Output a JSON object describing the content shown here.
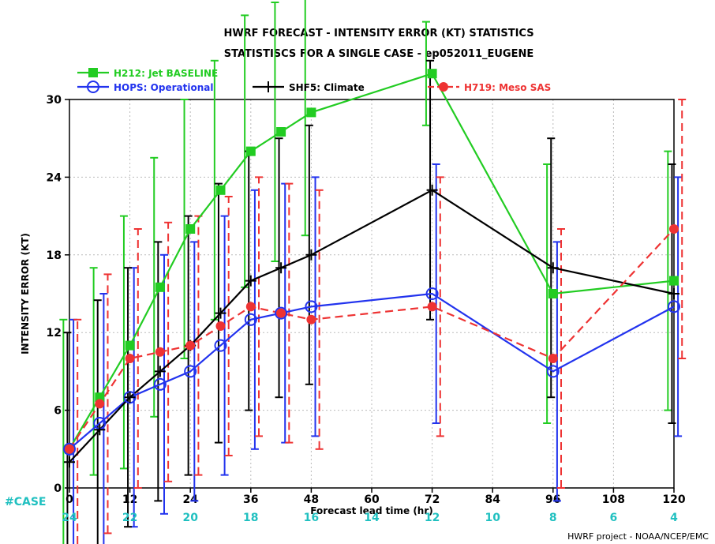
{
  "chart_data": {
    "type": "line",
    "title": "HWRF FORECAST - INTENSITY ERROR (KT) STATISTICS",
    "subtitle": "STATISTISCS FOR A SINGLE CASE - ep052011_EUGENE",
    "xlabel": "Forecast lead time (hr)",
    "ylabel": "INTENSITY ERROR (KT)",
    "xlim": [
      0,
      120
    ],
    "ylim": [
      0,
      30
    ],
    "x_ticks": [
      0,
      12,
      24,
      36,
      48,
      60,
      72,
      84,
      96,
      108,
      120
    ],
    "x_tick_labels": [
      "0",
      "12",
      "24",
      "36",
      "48",
      "60",
      "72",
      "84",
      "96",
      "108",
      "120"
    ],
    "y_ticks": [
      0,
      6,
      12,
      18,
      24,
      30
    ],
    "y_tick_labels": [
      "0",
      "6",
      "12",
      "18",
      "24",
      "30"
    ],
    "grid": true,
    "legend_position": "top",
    "case_label": "#CASE",
    "case_counts": {
      "x": [
        0,
        12,
        24,
        36,
        48,
        60,
        72,
        84,
        96,
        108,
        120
      ],
      "labels": [
        "24",
        "22",
        "20",
        "18",
        "16",
        "14",
        "12",
        "10",
        "8",
        "6",
        "4"
      ],
      "color": "#20c0c0"
    },
    "credit": "HWRF project - NOAA/NCEP/EMC",
    "series": [
      {
        "name": "H212: Jet BASELINE",
        "color": "#22cc22",
        "marker": "filled-square",
        "dash": "solid",
        "x": [
          0,
          6,
          12,
          18,
          24,
          30,
          36,
          42,
          48,
          72,
          96,
          120
        ],
        "y": [
          3,
          7,
          11,
          15.5,
          20,
          23,
          26,
          27.5,
          29,
          32,
          15,
          16
        ],
        "err_low": [
          -6,
          1,
          1.5,
          5.5,
          10,
          13,
          15.5,
          17.5,
          19.5,
          28,
          5,
          6
        ],
        "err_high": [
          13,
          17,
          21,
          25.5,
          30,
          33,
          36.5,
          37.5,
          38.5,
          36,
          25,
          26
        ]
      },
      {
        "name": "HOPS: Operational",
        "color": "#2233ee",
        "marker": "open-circle",
        "dash": "solid",
        "x": [
          0,
          6,
          12,
          18,
          24,
          30,
          36,
          42,
          48,
          72,
          96,
          120
        ],
        "y": [
          3,
          5,
          7,
          8,
          9,
          11,
          13,
          13.5,
          14,
          15,
          9,
          14
        ],
        "err_low": [
          -7,
          -5,
          -3,
          -2,
          -1,
          1,
          3,
          3.5,
          4,
          5,
          -1,
          4
        ],
        "err_high": [
          13,
          15,
          17,
          18,
          19,
          21,
          23,
          23.5,
          24,
          25,
          19,
          24
        ]
      },
      {
        "name": "SHF5: Climate",
        "color": "#000000",
        "marker": "plus",
        "dash": "solid",
        "x": [
          0,
          6,
          12,
          18,
          24,
          30,
          36,
          42,
          48,
          72,
          96,
          120
        ],
        "y": [
          2,
          4.5,
          7,
          9,
          11,
          13.5,
          16,
          17,
          18,
          23,
          17,
          15
        ],
        "err_low": [
          -8,
          -5.5,
          -3,
          -1,
          1,
          3.5,
          6,
          7,
          8,
          13,
          7,
          5
        ],
        "err_high": [
          12,
          14.5,
          17,
          19,
          21,
          23.5,
          26,
          27,
          28,
          33,
          27,
          25
        ]
      },
      {
        "name": "H719: Meso SAS",
        "color": "#ee3333",
        "marker": "filled-circle",
        "dash": "dashed",
        "x": [
          0,
          6,
          12,
          18,
          24,
          30,
          36,
          42,
          48,
          72,
          96,
          120
        ],
        "y": [
          3,
          6.5,
          10,
          10.5,
          11,
          12.5,
          14,
          13.5,
          13,
          14,
          10,
          20
        ],
        "err_low": [
          -7,
          -3.5,
          0,
          0.5,
          1,
          2.5,
          4,
          3.5,
          3,
          4,
          0,
          10
        ],
        "err_high": [
          13,
          16.5,
          20,
          20.5,
          21,
          22.5,
          24,
          23.5,
          23,
          24,
          20,
          30
        ]
      }
    ]
  }
}
